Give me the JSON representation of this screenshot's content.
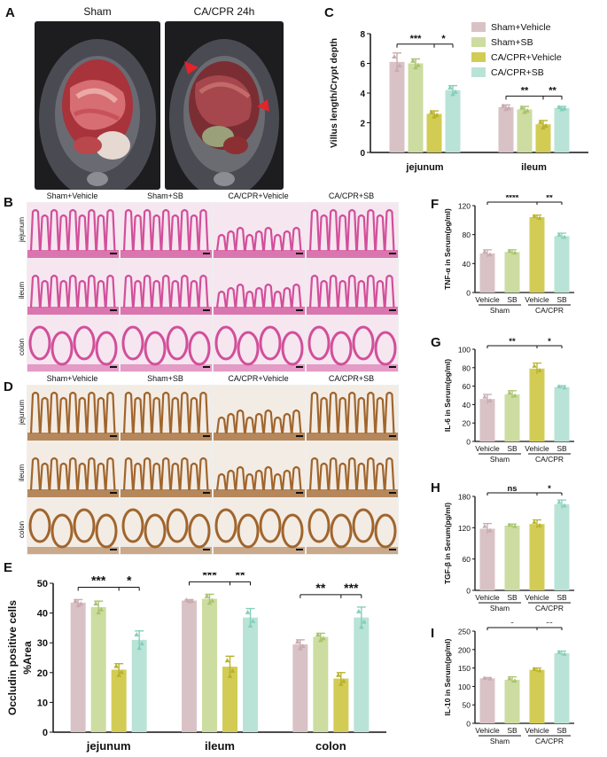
{
  "panels": {
    "A": "A",
    "B": "B",
    "C": "C",
    "D": "D",
    "E": "E",
    "F": "F",
    "G": "G",
    "H": "H",
    "I": "I"
  },
  "panel_a": {
    "titles": [
      "Sham",
      "CA/CPR 24h"
    ]
  },
  "histology": {
    "columns": [
      "Sham+Vehicle",
      "Sham+SB",
      "CA/CPR+Vehicle",
      "CA/CPR+SB"
    ],
    "rows": [
      "jejunum",
      "ileum",
      "colon"
    ]
  },
  "colors": {
    "sham_vehicle": "#d9c2c6",
    "sham_sb": "#cddca0",
    "cacpr_vehicle": "#d2cc55",
    "cacpr_sb": "#b9e3d7",
    "marker_sham_vehicle": "#c9aab0",
    "marker_sham_sb": "#a9c36e",
    "marker_cacpr_vehicle": "#b8b22c",
    "marker_cacpr_sb": "#85cfba",
    "he_stain": "#d24f9a",
    "ihc_stain": "#a0652d",
    "arrow": "#e4232a"
  },
  "chart_data": [
    {
      "id": "C",
      "type": "bar",
      "categories": [
        "jejunum",
        "ileum"
      ],
      "series": [
        {
          "name": "Sham+Vehicle",
          "values": [
            6.1,
            3.05
          ],
          "errors": [
            0.6,
            0.15
          ]
        },
        {
          "name": "Sham+SB",
          "values": [
            6.0,
            2.9
          ],
          "errors": [
            0.3,
            0.2
          ]
        },
        {
          "name": "CA/CPR+Vehicle",
          "values": [
            2.6,
            1.9
          ],
          "errors": [
            0.2,
            0.25
          ]
        },
        {
          "name": "CA/CPR+SB",
          "values": [
            4.2,
            3.0
          ],
          "errors": [
            0.3,
            0.1
          ]
        }
      ],
      "ylabel": "Villus length/Crypt depth",
      "ylim": [
        0,
        8
      ],
      "yticks": [
        0,
        2,
        4,
        6,
        8
      ],
      "significance": [
        {
          "group": 0,
          "labels": [
            "***",
            "*"
          ]
        },
        {
          "group": 1,
          "labels": [
            "**",
            "**"
          ]
        }
      ],
      "legend": "top-right"
    },
    {
      "id": "E",
      "type": "bar",
      "categories": [
        "jejunum",
        "ileum",
        "colon"
      ],
      "series": [
        {
          "name": "Sham+Vehicle",
          "values": [
            43.5,
            44.2,
            29.5
          ],
          "errors": [
            1.0,
            0.3,
            1.5
          ]
        },
        {
          "name": "Sham+SB",
          "values": [
            42.0,
            44.8,
            32.0
          ],
          "errors": [
            2.0,
            1.5,
            1.2
          ]
        },
        {
          "name": "CA/CPR+Vehicle",
          "values": [
            21.0,
            22.0,
            18.0
          ],
          "errors": [
            2.0,
            3.5,
            2.0
          ]
        },
        {
          "name": "CA/CPR+SB",
          "values": [
            31.0,
            38.5,
            38.5
          ],
          "errors": [
            3.0,
            3.0,
            3.5
          ]
        }
      ],
      "ylabel_lines": [
        "Occludin positive cells",
        "%Area"
      ],
      "ylim": [
        0,
        50
      ],
      "yticks": [
        0,
        10,
        20,
        30,
        40,
        50
      ],
      "significance": [
        {
          "group": 0,
          "labels": [
            "***",
            "*"
          ]
        },
        {
          "group": 1,
          "labels": [
            "***",
            "**"
          ]
        },
        {
          "group": 2,
          "labels": [
            "**",
            "***"
          ]
        }
      ]
    },
    {
      "id": "F",
      "type": "bar",
      "categories": [
        "Vehicle",
        "SB",
        "Vehicle",
        "SB"
      ],
      "groups": [
        "Sham",
        "CA/CPR"
      ],
      "values": [
        54,
        56,
        104,
        78
      ],
      "errors": [
        5,
        3,
        3,
        4
      ],
      "ylabel": "TNF-α in Serum(pg/ml)",
      "ylim": [
        0,
        120
      ],
      "yticks": [
        0,
        40,
        80,
        120
      ],
      "significance": [
        "****",
        "**"
      ]
    },
    {
      "id": "G",
      "type": "bar",
      "categories": [
        "Vehicle",
        "SB",
        "Vehicle",
        "SB"
      ],
      "groups": [
        "Sham",
        "CA/CPR"
      ],
      "values": [
        46,
        51,
        79,
        59
      ],
      "errors": [
        5,
        4,
        6,
        1.5
      ],
      "ylabel": "IL-6 in Serum(pg/ml)",
      "ylim": [
        0,
        100
      ],
      "yticks": [
        0,
        20,
        40,
        60,
        80,
        100
      ],
      "significance": [
        "**",
        "*"
      ]
    },
    {
      "id": "H",
      "type": "bar",
      "categories": [
        "Vehicle",
        "SB",
        "Vehicle",
        "SB"
      ],
      "groups": [
        "Sham",
        "CA/CPR"
      ],
      "values": [
        118,
        124,
        127,
        165
      ],
      "errors": [
        10,
        3,
        8,
        8
      ],
      "ylabel": "TGF-β in Serum(pg/ml)",
      "ylim": [
        0,
        180
      ],
      "yticks": [
        0,
        60,
        120,
        180
      ],
      "significance": [
        "ns",
        "*"
      ]
    },
    {
      "id": "I",
      "type": "bar",
      "categories": [
        "Vehicle",
        "SB",
        "Vehicle",
        "SB"
      ],
      "groups": [
        "Sham",
        "CA/CPR"
      ],
      "values": [
        122,
        118,
        145,
        190
      ],
      "errors": [
        2,
        8,
        5,
        6
      ],
      "ylabel": "IL-10 in Serum(pg/ml)",
      "ylim": [
        0,
        250
      ],
      "yticks": [
        0,
        50,
        100,
        150,
        200,
        250
      ],
      "significance": [
        "*",
        "**"
      ]
    }
  ]
}
